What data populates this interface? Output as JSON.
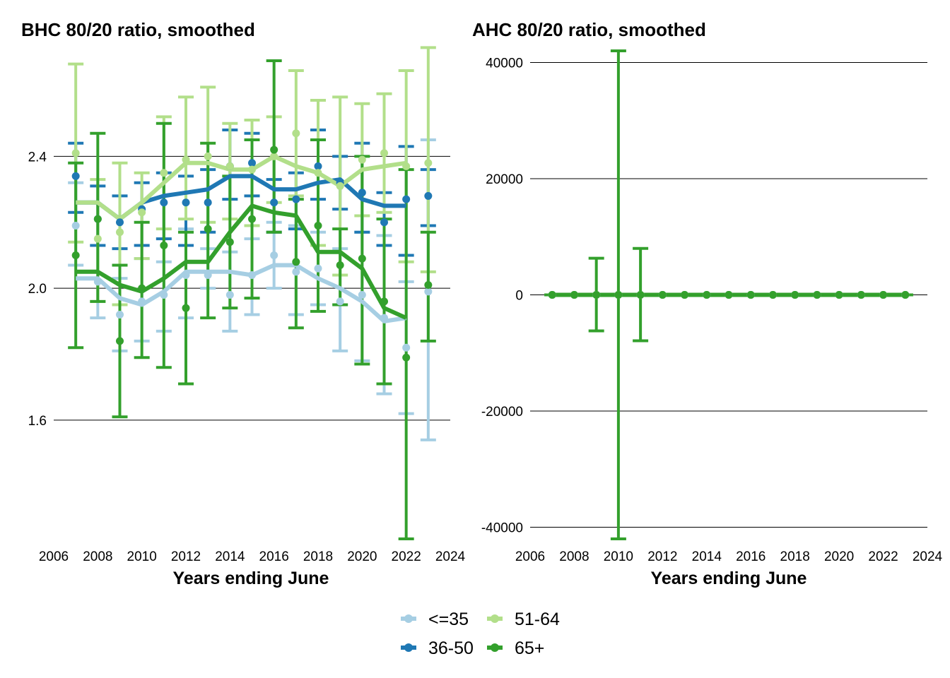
{
  "chart_data": [
    {
      "type": "line",
      "title": "BHC 80/20 ratio, smoothed",
      "xlabel": "Years ending June",
      "ylabel": "",
      "xlim": [
        2006,
        2024
      ],
      "xticks": [
        2006,
        2008,
        2010,
        2012,
        2014,
        2016,
        2018,
        2020,
        2022,
        2024
      ],
      "x_tick_labels": [
        "2006",
        "2008",
        "2010",
        "2012",
        "2014",
        "2016",
        "2018",
        "2020",
        "2022",
        "2024"
      ],
      "ylim": [
        1.24,
        2.72
      ],
      "yticks": [
        1.6,
        2.0,
        2.4
      ],
      "y_tick_labels": [
        "1.6",
        "2.0",
        "2.4"
      ],
      "grid": "horizontal",
      "series": [
        {
          "name": "<=35",
          "color": "#a6cee3",
          "x": [
            2007,
            2008,
            2009,
            2010,
            2011,
            2012,
            2013,
            2014,
            2015,
            2016,
            2017,
            2018,
            2019,
            2020,
            2021,
            2022,
            2023
          ],
          "points": [
            2.19,
            2.02,
            1.92,
            1.96,
            1.98,
            2.04,
            2.04,
            1.98,
            2.04,
            2.1,
            2.05,
            2.06,
            1.96,
            1.98,
            1.91,
            1.82,
            1.99
          ],
          "lower": [
            2.07,
            1.91,
            1.81,
            1.84,
            1.87,
            1.91,
            2.0,
            1.87,
            1.92,
            2.0,
            1.92,
            1.95,
            1.81,
            1.78,
            1.68,
            1.62,
            1.54
          ],
          "upper": [
            2.32,
            2.13,
            2.03,
            2.09,
            2.08,
            2.18,
            2.12,
            2.11,
            2.15,
            2.2,
            2.19,
            2.17,
            2.12,
            2.17,
            2.16,
            2.02,
            2.45
          ],
          "smoothed": [
            2.03,
            2.03,
            1.97,
            1.95,
            1.99,
            2.05,
            2.05,
            2.05,
            2.04,
            2.07,
            2.07,
            2.03,
            2.0,
            1.96,
            1.9,
            1.91,
            null
          ]
        },
        {
          "name": "36-50",
          "color": "#1f78b4",
          "x": [
            2007,
            2008,
            2009,
            2010,
            2011,
            2012,
            2013,
            2014,
            2015,
            2016,
            2017,
            2018,
            2019,
            2020,
            2021,
            2022,
            2023
          ],
          "points": [
            2.34,
            2.21,
            2.2,
            2.24,
            2.26,
            2.26,
            2.26,
            2.37,
            2.38,
            2.26,
            2.27,
            2.37,
            2.32,
            2.29,
            2.2,
            2.27,
            2.28
          ],
          "lower": [
            2.23,
            2.13,
            2.12,
            2.13,
            2.15,
            2.13,
            2.17,
            2.27,
            2.28,
            2.17,
            2.18,
            2.27,
            2.24,
            2.17,
            2.13,
            2.1,
            2.19
          ],
          "upper": [
            2.44,
            2.31,
            2.28,
            2.32,
            2.35,
            2.34,
            2.36,
            2.48,
            2.47,
            2.33,
            2.35,
            2.48,
            2.4,
            2.44,
            2.29,
            2.43,
            2.36
          ],
          "smoothed": [
            2.26,
            2.26,
            2.21,
            2.26,
            2.28,
            2.29,
            2.3,
            2.34,
            2.34,
            2.3,
            2.3,
            2.32,
            2.33,
            2.27,
            2.25,
            2.25,
            null
          ]
        },
        {
          "name": "51-64",
          "color": "#b2df8a",
          "x": [
            2007,
            2008,
            2009,
            2010,
            2011,
            2012,
            2013,
            2014,
            2015,
            2016,
            2017,
            2018,
            2019,
            2020,
            2021,
            2022,
            2023
          ],
          "points": [
            2.41,
            2.15,
            2.17,
            2.23,
            2.35,
            2.39,
            2.4,
            2.37,
            2.36,
            2.4,
            2.47,
            2.35,
            2.31,
            2.39,
            2.41,
            2.37,
            2.38
          ],
          "lower": [
            2.14,
            1.96,
            1.95,
            2.09,
            2.18,
            2.21,
            2.2,
            2.21,
            2.19,
            2.26,
            2.28,
            2.13,
            2.04,
            2.22,
            2.23,
            2.08,
            2.05
          ],
          "upper": [
            2.68,
            2.33,
            2.38,
            2.35,
            2.52,
            2.58,
            2.61,
            2.5,
            2.51,
            2.52,
            2.66,
            2.57,
            2.58,
            2.56,
            2.59,
            2.66,
            2.73
          ],
          "smoothed": [
            2.26,
            2.26,
            2.21,
            2.26,
            2.32,
            2.38,
            2.38,
            2.36,
            2.36,
            2.4,
            2.37,
            2.35,
            2.31,
            2.36,
            2.37,
            2.38,
            null
          ]
        },
        {
          "name": "65+",
          "color": "#33a02c",
          "x": [
            2007,
            2008,
            2009,
            2010,
            2011,
            2012,
            2013,
            2014,
            2015,
            2016,
            2017,
            2018,
            2019,
            2020,
            2021,
            2022,
            2023
          ],
          "points": [
            2.1,
            2.21,
            1.84,
            2.0,
            2.13,
            1.94,
            2.18,
            2.14,
            2.21,
            2.42,
            2.08,
            2.19,
            2.07,
            2.09,
            1.96,
            1.79,
            2.01
          ],
          "lower": [
            1.82,
            1.96,
            1.61,
            1.79,
            1.76,
            1.71,
            1.91,
            1.94,
            1.97,
            2.17,
            1.88,
            1.93,
            1.95,
            1.77,
            1.71,
            1.24,
            1.84
          ],
          "upper": [
            2.38,
            2.47,
            2.07,
            2.2,
            2.5,
            2.17,
            2.44,
            2.34,
            2.45,
            2.69,
            2.27,
            2.45,
            2.18,
            2.4,
            2.21,
            2.36,
            2.17
          ],
          "smoothed": [
            2.05,
            2.05,
            2.01,
            1.99,
            2.03,
            2.08,
            2.08,
            2.17,
            2.25,
            2.23,
            2.22,
            2.11,
            2.11,
            2.06,
            1.94,
            1.91,
            null
          ]
        }
      ]
    },
    {
      "type": "line",
      "title": "AHC 80/20 ratio, smoothed",
      "xlabel": "Years ending June",
      "ylabel": "",
      "xlim": [
        2006,
        2024
      ],
      "xticks": [
        2006,
        2008,
        2010,
        2012,
        2014,
        2016,
        2018,
        2020,
        2022,
        2024
      ],
      "x_tick_labels": [
        "2006",
        "2008",
        "2010",
        "2012",
        "2014",
        "2016",
        "2018",
        "2020",
        "2022",
        "2024"
      ],
      "ylim": [
        -42000,
        42000
      ],
      "yticks": [
        -40000,
        -20000,
        0,
        20000,
        40000
      ],
      "y_tick_labels": [
        "-40000",
        "-20000",
        "0",
        "20000",
        "40000"
      ],
      "grid": "horizontal",
      "series": [
        {
          "name": "<=35",
          "color": "#a6cee3",
          "x": [
            2007,
            2008,
            2009,
            2010,
            2011,
            2012,
            2013,
            2014,
            2015,
            2016,
            2017,
            2018,
            2019,
            2020,
            2021,
            2022,
            2023
          ],
          "points": [
            3,
            3,
            3,
            3,
            3,
            3,
            3,
            3,
            3,
            3,
            3,
            3,
            3,
            3,
            3,
            3,
            3
          ],
          "lower": [
            3,
            3,
            3,
            3,
            3,
            3,
            3,
            3,
            3,
            3,
            3,
            3,
            3,
            3,
            3,
            3,
            3
          ],
          "upper": [
            3,
            3,
            3,
            3,
            3,
            3,
            3,
            3,
            3,
            3,
            3,
            3,
            3,
            3,
            3,
            3,
            3
          ],
          "smoothed": [
            3,
            3,
            3,
            3,
            3,
            3,
            3,
            3,
            3,
            3,
            3,
            3,
            3,
            3,
            3,
            3,
            3
          ]
        },
        {
          "name": "36-50",
          "color": "#1f78b4",
          "x": [
            2007,
            2008,
            2009,
            2010,
            2011,
            2012,
            2013,
            2014,
            2015,
            2016,
            2017,
            2018,
            2019,
            2020,
            2021,
            2022,
            2023
          ],
          "points": [
            3,
            3,
            3,
            3,
            3,
            3,
            3,
            3,
            3,
            3,
            3,
            3,
            3,
            3,
            3,
            3,
            3
          ],
          "lower": [
            3,
            3,
            3,
            3,
            3,
            3,
            3,
            3,
            3,
            3,
            3,
            3,
            3,
            3,
            3,
            3,
            3
          ],
          "upper": [
            3,
            3,
            3,
            3,
            3,
            3,
            3,
            3,
            3,
            3,
            3,
            3,
            3,
            3,
            3,
            3,
            3
          ],
          "smoothed": [
            3,
            3,
            3,
            3,
            3,
            3,
            3,
            3,
            3,
            3,
            3,
            3,
            3,
            3,
            3,
            3,
            3
          ]
        },
        {
          "name": "51-64",
          "color": "#b2df8a",
          "x": [
            2007,
            2008,
            2009,
            2010,
            2011,
            2012,
            2013,
            2014,
            2015,
            2016,
            2017,
            2018,
            2019,
            2020,
            2021,
            2022,
            2023
          ],
          "points": [
            3,
            3,
            3,
            3,
            3,
            3,
            3,
            3,
            3,
            3,
            3,
            3,
            3,
            3,
            3,
            3,
            3
          ],
          "lower": [
            3,
            3,
            3,
            3,
            3,
            3,
            3,
            3,
            3,
            3,
            3,
            3,
            3,
            3,
            3,
            3,
            3
          ],
          "upper": [
            3,
            3,
            3,
            3,
            3,
            3,
            3,
            3,
            3,
            3,
            3,
            3,
            3,
            3,
            3,
            3,
            3
          ],
          "smoothed": [
            3,
            3,
            3,
            3,
            3,
            3,
            3,
            3,
            3,
            3,
            3,
            3,
            3,
            3,
            3,
            3,
            3
          ]
        },
        {
          "name": "65+",
          "color": "#33a02c",
          "x": [
            2007,
            2008,
            2009,
            2010,
            2011,
            2012,
            2013,
            2014,
            2015,
            2016,
            2017,
            2018,
            2019,
            2020,
            2021,
            2022,
            2023
          ],
          "points": [
            3,
            3,
            3,
            3,
            3,
            3,
            3,
            3,
            3,
            3,
            3,
            3,
            3,
            3,
            3,
            3,
            3
          ],
          "lower": [
            3,
            3,
            -6200,
            -42000,
            -7900,
            3,
            3,
            3,
            3,
            3,
            3,
            3,
            3,
            3,
            3,
            3,
            3
          ],
          "upper": [
            3,
            3,
            6300,
            42000,
            8000,
            3,
            3,
            3,
            3,
            3,
            3,
            3,
            3,
            3,
            3,
            3,
            3
          ],
          "smoothed": [
            3,
            3,
            3,
            3,
            3,
            3,
            3,
            3,
            3,
            3,
            3,
            3,
            3,
            3,
            3,
            3,
            3
          ]
        }
      ]
    }
  ],
  "legend": {
    "placement": "bottom",
    "entries": [
      {
        "label": "<=35",
        "color": "#a6cee3"
      },
      {
        "label": "36-50",
        "color": "#1f78b4"
      },
      {
        "label": "51-64",
        "color": "#b2df8a"
      },
      {
        "label": "65+",
        "color": "#33a02c"
      }
    ]
  }
}
